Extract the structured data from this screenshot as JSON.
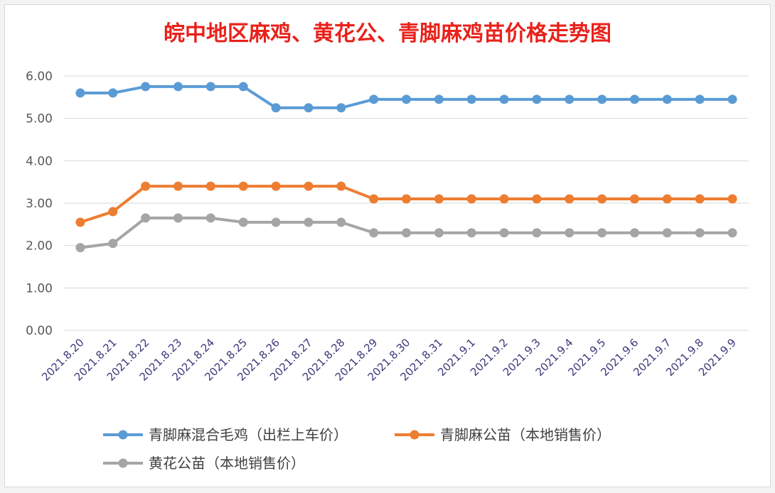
{
  "colors": {
    "series_1": "#5b9bd5",
    "series_2": "#ed7d31",
    "series_3": "#a5a5a5",
    "grid": "#d9d9d9",
    "title": "#e8221b"
  },
  "chart_data": {
    "type": "line",
    "title": "皖中地区麻鸡、黄花公、青脚麻鸡苗价格走势图",
    "xlabel": "",
    "ylabel": "",
    "ylim": [
      0,
      6
    ],
    "yticks": [
      "0.00",
      "1.00",
      "2.00",
      "3.00",
      "4.00",
      "5.00",
      "6.00"
    ],
    "grid": true,
    "legend_position": "bottom",
    "categories": [
      "2021.8.20",
      "2021.8.21",
      "2021.8.22",
      "2021.8.23",
      "2021.8.24",
      "2021.8.25",
      "2021.8.26",
      "2021.8.27",
      "2021.8.28",
      "2021.8.29",
      "2021.8.30",
      "2021.8.31",
      "2021.9.1",
      "2021.9.2",
      "2021.9.3",
      "2021.9.4",
      "2021.9.5",
      "2021.9.6",
      "2021.9.7",
      "2021.9.8",
      "2021.9.9"
    ],
    "series": [
      {
        "name": "青脚麻混合毛鸡（出栏上车价）",
        "color": "#5b9bd5",
        "values": [
          5.6,
          5.6,
          5.75,
          5.75,
          5.75,
          5.75,
          5.25,
          5.25,
          5.25,
          5.45,
          5.45,
          5.45,
          5.45,
          5.45,
          5.45,
          5.45,
          5.45,
          5.45,
          5.45,
          5.45,
          5.45
        ]
      },
      {
        "name": "青脚麻公苗（本地销售价）",
        "color": "#ed7d31",
        "values": [
          2.55,
          2.8,
          3.4,
          3.4,
          3.4,
          3.4,
          3.4,
          3.4,
          3.4,
          3.1,
          3.1,
          3.1,
          3.1,
          3.1,
          3.1,
          3.1,
          3.1,
          3.1,
          3.1,
          3.1,
          3.1
        ]
      },
      {
        "name": "黄花公苗（本地销售价）",
        "color": "#a5a5a5",
        "values": [
          1.95,
          2.05,
          2.65,
          2.65,
          2.65,
          2.55,
          2.55,
          2.55,
          2.55,
          2.3,
          2.3,
          2.3,
          2.3,
          2.3,
          2.3,
          2.3,
          2.3,
          2.3,
          2.3,
          2.3,
          2.3
        ]
      }
    ]
  }
}
